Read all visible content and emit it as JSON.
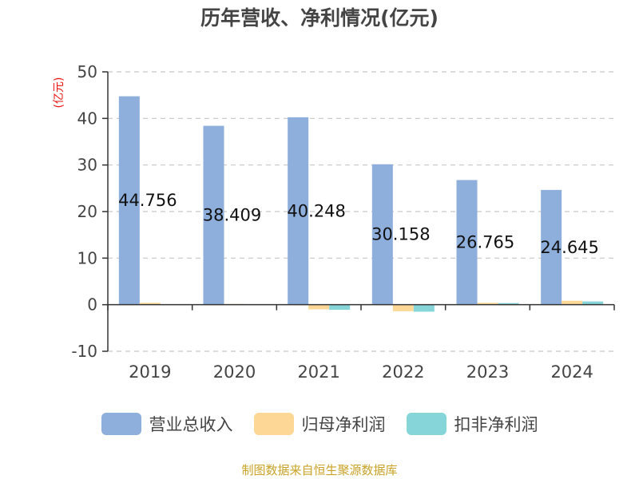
{
  "chart_data": {
    "type": "bar",
    "title": "历年营收、净利情况(亿元)",
    "ylabel": "(亿元)",
    "ylim": [
      -10,
      50
    ],
    "yticks": [
      50,
      40,
      30,
      20,
      10,
      0,
      -10
    ],
    "categories": [
      "2019",
      "2020",
      "2021",
      "2022",
      "2023",
      "2024"
    ],
    "series": [
      {
        "name": "营业总收入",
        "color": "#8eaedb",
        "values": [
          44.756,
          38.409,
          40.248,
          30.158,
          26.765,
          24.645
        ],
        "labels": [
          "44.756",
          "38.409",
          "40.248",
          "30.158",
          "26.765",
          "24.645"
        ]
      },
      {
        "name": "归母净利润",
        "color": "#fdd796",
        "values": [
          0.4,
          0.15,
          -1.0,
          -1.4,
          0.4,
          0.85
        ]
      },
      {
        "name": "扣非净利润",
        "color": "#86d5d8",
        "values": [
          0.0,
          0.1,
          -1.1,
          -1.5,
          0.35,
          0.7
        ]
      }
    ],
    "grid": true,
    "legend_position": "bottom"
  },
  "source_text": "制图数据来自恒生聚源数据库"
}
